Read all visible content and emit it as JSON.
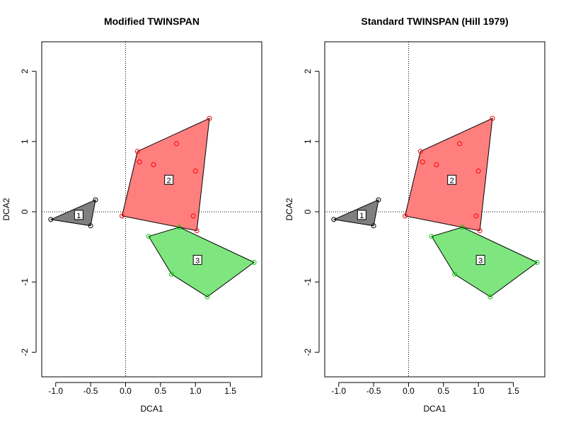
{
  "chart_data": [
    {
      "type": "scatter",
      "title": "Modified TWINSPAN",
      "xlabel": "DCA1",
      "ylabel": "DCA2",
      "xlim": [
        -1.2,
        1.95
      ],
      "ylim": [
        -2.35,
        2.42
      ],
      "xticks": [
        "-1.0",
        "-0.5",
        "0.0",
        "0.5",
        "1.0",
        "1.5"
      ],
      "yticks": [
        "-2",
        "-1",
        "0",
        "1",
        "2"
      ],
      "reference_lines": {
        "x": 0,
        "y": 0,
        "style": "dotted"
      },
      "groups": [
        {
          "label": "1",
          "color": "#000000",
          "fill": "#7f7f7f",
          "points": [
            [
              -1.07,
              -0.11
            ],
            [
              -0.5,
              -0.2
            ],
            [
              -0.43,
              0.17
            ]
          ],
          "hull": [
            [
              -1.07,
              -0.11
            ],
            [
              -0.43,
              0.17
            ],
            [
              -0.5,
              -0.2
            ]
          ],
          "label_pos": [
            -0.67,
            -0.05
          ]
        },
        {
          "label": "2",
          "color": "#ff0000",
          "fill": "#ff7f7f",
          "points": [
            [
              -0.05,
              -0.06
            ],
            [
              0.17,
              0.86
            ],
            [
              0.2,
              0.71
            ],
            [
              0.4,
              0.67
            ],
            [
              0.73,
              0.97
            ],
            [
              1.0,
              0.58
            ],
            [
              0.97,
              -0.06
            ],
            [
              1.02,
              -0.27
            ],
            [
              1.2,
              1.33
            ]
          ],
          "hull": [
            [
              -0.05,
              -0.06
            ],
            [
              0.17,
              0.86
            ],
            [
              1.2,
              1.33
            ],
            [
              1.02,
              -0.27
            ]
          ],
          "label_pos": [
            0.62,
            0.45
          ]
        },
        {
          "label": "3",
          "color": "#00cd00",
          "fill": "#7fe67f",
          "points": [
            [
              0.33,
              -0.35
            ],
            [
              0.77,
              -0.22
            ],
            [
              0.66,
              -0.89
            ],
            [
              1.17,
              -1.21
            ],
            [
              1.84,
              -0.72
            ]
          ],
          "hull": [
            [
              0.33,
              -0.35
            ],
            [
              0.77,
              -0.22
            ],
            [
              1.84,
              -0.72
            ],
            [
              1.17,
              -1.21
            ],
            [
              0.66,
              -0.89
            ]
          ],
          "label_pos": [
            1.03,
            -0.69
          ]
        }
      ]
    },
    {
      "type": "scatter",
      "title": "Standard TWINSPAN (Hill 1979)",
      "xlabel": "DCA1",
      "ylabel": "DCA2",
      "xlim": [
        -1.2,
        1.95
      ],
      "ylim": [
        -2.35,
        2.42
      ],
      "xticks": [
        "-1.0",
        "-0.5",
        "0.0",
        "0.5",
        "1.0",
        "1.5"
      ],
      "yticks": [
        "-2",
        "-1",
        "0",
        "1",
        "2"
      ],
      "reference_lines": {
        "x": 0,
        "y": 0,
        "style": "dotted"
      },
      "groups": [
        {
          "label": "1",
          "color": "#000000",
          "fill": "#7f7f7f",
          "points": [
            [
              -1.07,
              -0.11
            ],
            [
              -0.5,
              -0.2
            ],
            [
              -0.43,
              0.17
            ]
          ],
          "hull": [
            [
              -1.07,
              -0.11
            ],
            [
              -0.43,
              0.17
            ],
            [
              -0.5,
              -0.2
            ]
          ],
          "label_pos": [
            -0.67,
            -0.05
          ]
        },
        {
          "label": "2",
          "color": "#ff0000",
          "fill": "#ff7f7f",
          "points": [
            [
              -0.05,
              -0.06
            ],
            [
              0.17,
              0.86
            ],
            [
              0.2,
              0.71
            ],
            [
              0.4,
              0.67
            ],
            [
              0.73,
              0.97
            ],
            [
              1.0,
              0.58
            ],
            [
              0.97,
              -0.06
            ],
            [
              1.02,
              -0.27
            ],
            [
              1.2,
              1.33
            ]
          ],
          "hull": [
            [
              -0.05,
              -0.06
            ],
            [
              0.17,
              0.86
            ],
            [
              1.2,
              1.33
            ],
            [
              1.02,
              -0.27
            ]
          ],
          "label_pos": [
            0.62,
            0.45
          ]
        },
        {
          "label": "3",
          "color": "#00cd00",
          "fill": "#7fe67f",
          "points": [
            [
              0.33,
              -0.35
            ],
            [
              0.77,
              -0.22
            ],
            [
              0.66,
              -0.89
            ],
            [
              1.17,
              -1.21
            ],
            [
              1.84,
              -0.72
            ]
          ],
          "hull": [
            [
              0.33,
              -0.35
            ],
            [
              0.77,
              -0.22
            ],
            [
              1.84,
              -0.72
            ],
            [
              1.17,
              -1.21
            ],
            [
              0.66,
              -0.89
            ]
          ],
          "label_pos": [
            1.03,
            -0.69
          ]
        }
      ]
    }
  ]
}
